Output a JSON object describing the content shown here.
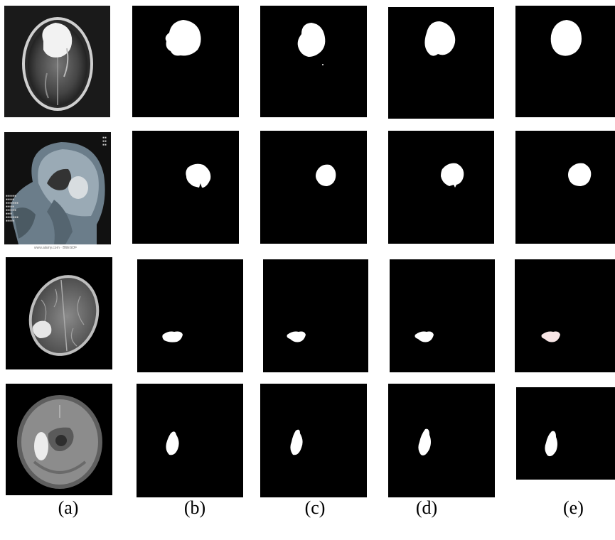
{
  "figure": {
    "column_labels": [
      "(a)",
      "(b)",
      "(c)",
      "(d)",
      "(e)"
    ],
    "scan_text": "www.alamy.com · B6EGDF"
  },
  "colors": {
    "background": "#ffffff",
    "mask_background": "#000000",
    "mask_foreground": "#ffffff"
  }
}
